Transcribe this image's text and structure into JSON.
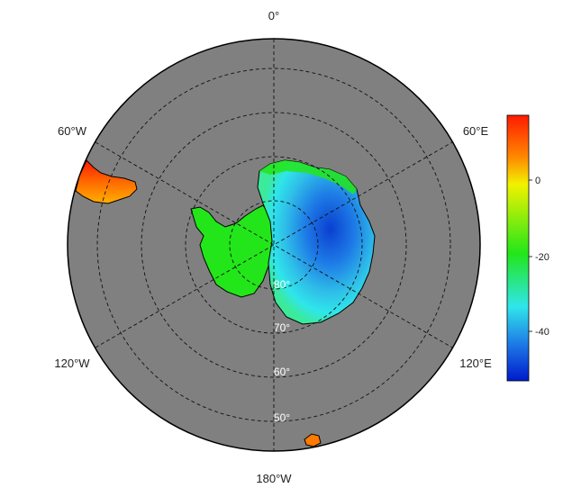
{
  "map": {
    "projection": "south polar stereographic",
    "longitude_labels": {
      "top": "0°",
      "bottom": "180°W",
      "upper_left": "60°W",
      "upper_right": "60°E",
      "lower_left": "120°W",
      "lower_right": "120°E"
    },
    "latitude_labels": [
      "80°",
      "70°",
      "60°",
      "50°"
    ],
    "ocean_color": "#808080",
    "colors": {
      "deep_blue": "#0a3fd0",
      "blue": "#1e7be6",
      "cyan": "#2fe6ea",
      "green": "#22e619",
      "lime": "#6ef20a",
      "yellow": "#f2f200",
      "orange": "#ff8a00",
      "red": "#ff1a00"
    }
  },
  "colorbar": {
    "ticks": [
      "0",
      "-20",
      "-40"
    ],
    "gradient": [
      "#ff1a00",
      "#ff8a00",
      "#f2f200",
      "#22e619",
      "#2fe6ea",
      "#1e7be6",
      "#001acc"
    ]
  }
}
